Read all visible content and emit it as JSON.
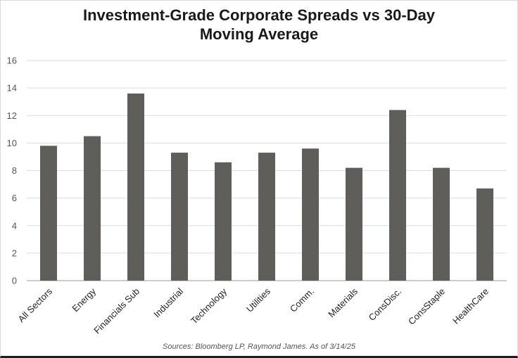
{
  "chart_data": {
    "type": "bar",
    "title_lines": [
      "Investment-Grade Corporate Spreads vs 30-Day",
      "Moving Average"
    ],
    "categories": [
      "All Sectors",
      "Energy",
      "Financials Sub",
      "Industrial",
      "Technology",
      "Utilities",
      "Comm.",
      "Materials",
      "ConsDisc.",
      "ConsStaple",
      "HealthCare"
    ],
    "values": [
      9.8,
      10.5,
      13.6,
      9.3,
      8.6,
      9.3,
      9.6,
      8.2,
      12.4,
      8.2,
      6.7
    ],
    "ylim": [
      0,
      16
    ],
    "yticks": [
      0,
      2,
      4,
      6,
      8,
      10,
      12,
      14,
      16
    ],
    "xlabel": "",
    "ylabel": "",
    "grid": true,
    "bar_color": "#5f5e5b",
    "source": "Sources: Bloomberg LP, Raymond James. As of 3/14/25"
  }
}
